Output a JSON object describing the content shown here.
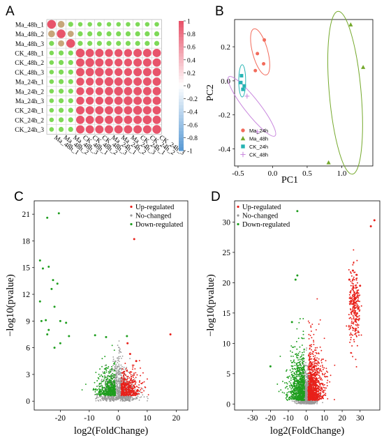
{
  "panels": {
    "a": "A",
    "b": "B",
    "c": "C",
    "d": "D"
  },
  "chart_data": [
    {
      "type": "heatmap",
      "title": "",
      "rows": [
        "Ma_48h_1",
        "Ma_48h_2",
        "Ma_48h_3",
        "CK_48h_1",
        "CK_48h_2",
        "CK_48h_3",
        "Ma_24h_1",
        "Ma_24h_2",
        "Ma_24h_3",
        "CK_24h_1",
        "CK_24h_2",
        "CK_24h_3"
      ],
      "columns": [
        "Ma_48h_1",
        "Ma_48h_2",
        "Ma_48h_3",
        "CK_48h_1",
        "CK_48h_2",
        "CK_48h_3",
        "Ma_24h_1",
        "Ma_24h_2",
        "Ma_24h_3",
        "CK_24h_1",
        "CK_24h_2",
        "CK_24h_3"
      ],
      "values": [
        [
          1.0,
          0.75,
          0.45,
          0.35,
          0.35,
          0.35,
          0.35,
          0.35,
          0.35,
          0.35,
          0.35,
          0.35
        ],
        [
          0.75,
          1.0,
          0.65,
          0.45,
          0.45,
          0.45,
          0.45,
          0.45,
          0.45,
          0.45,
          0.45,
          0.45
        ],
        [
          0.45,
          0.65,
          1.0,
          0.45,
          0.45,
          0.45,
          0.45,
          0.45,
          0.45,
          0.45,
          0.45,
          0.45
        ],
        [
          0.35,
          0.45,
          0.45,
          1.0,
          0.95,
          0.95,
          0.9,
          0.9,
          0.9,
          0.95,
          0.95,
          0.95
        ],
        [
          0.35,
          0.45,
          0.45,
          0.95,
          1.0,
          0.95,
          0.9,
          0.9,
          0.9,
          0.95,
          0.95,
          0.95
        ],
        [
          0.35,
          0.45,
          0.45,
          0.95,
          0.95,
          1.0,
          0.9,
          0.9,
          0.9,
          0.95,
          0.95,
          0.95
        ],
        [
          0.35,
          0.45,
          0.45,
          0.9,
          0.9,
          0.9,
          1.0,
          0.95,
          0.95,
          0.95,
          0.95,
          0.95
        ],
        [
          0.35,
          0.45,
          0.45,
          0.9,
          0.9,
          0.9,
          0.95,
          1.0,
          0.95,
          0.95,
          0.95,
          0.95
        ],
        [
          0.35,
          0.45,
          0.45,
          0.9,
          0.9,
          0.9,
          0.95,
          0.95,
          1.0,
          0.95,
          0.95,
          0.95
        ],
        [
          0.35,
          0.45,
          0.45,
          0.95,
          0.95,
          0.95,
          0.95,
          0.95,
          0.95,
          1.0,
          0.95,
          0.95
        ],
        [
          0.35,
          0.45,
          0.45,
          0.95,
          0.95,
          0.95,
          0.95,
          0.95,
          0.95,
          0.95,
          1.0,
          0.95
        ],
        [
          0.35,
          0.45,
          0.45,
          0.95,
          0.95,
          0.95,
          0.95,
          0.95,
          0.95,
          0.95,
          0.95,
          1.0
        ]
      ],
      "colorbar_ticks": [
        "1",
        "0.8",
        "0.6",
        "0.4",
        "0.2",
        "0",
        "-0.2",
        "-0.4",
        "-0.6",
        "-0.8",
        "-1"
      ],
      "colors": {
        "low": "#5b9bd5",
        "mid": "#ffffff",
        "green": "#7ed957",
        "tan": "#c7a67a",
        "high": "#e8546b"
      }
    },
    {
      "type": "scatter",
      "xlabel": "PC1",
      "ylabel": "PC2",
      "xlim": [
        -0.55,
        1.45
      ],
      "ylim": [
        -0.5,
        0.36
      ],
      "xticks": [
        "-0.5",
        "0.0",
        "0.5",
        "1.0"
      ],
      "yticks": [
        "0.2",
        "0.0",
        "-0.2",
        "-0.4"
      ],
      "legend": "bottom-left",
      "series": [
        {
          "name": "Ma_24h",
          "marker": "circle",
          "color": "#f26b5b",
          "points": [
            [
              -0.12,
              0.24
            ],
            [
              -0.22,
              0.16
            ],
            [
              -0.13,
              0.1
            ],
            [
              -0.25,
              0.06
            ]
          ]
        },
        {
          "name": "Ma_48h",
          "marker": "triangle",
          "color": "#74a82b",
          "points": [
            [
              1.13,
              0.33
            ],
            [
              1.31,
              0.08
            ],
            [
              0.81,
              -0.48
            ]
          ]
        },
        {
          "name": "CK_24h",
          "marker": "square",
          "color": "#25b3b3",
          "points": [
            [
              -0.45,
              0.03
            ],
            [
              -0.46,
              -0.01
            ],
            [
              -0.41,
              -0.03
            ],
            [
              -0.43,
              -0.05
            ]
          ]
        },
        {
          "name": "CK_48h",
          "marker": "plus",
          "color": "#c988de",
          "points": [
            [
              -0.37,
              -0.09
            ],
            [
              -0.22,
              -0.3
            ]
          ]
        }
      ],
      "ellipses": [
        {
          "series": "Ma_24h",
          "cx": -0.18,
          "cy": 0.17,
          "rx": 0.11,
          "ry": 0.14,
          "angle": -15
        },
        {
          "series": "Ma_48h",
          "cx": 1.05,
          "cy": -0.07,
          "rx": 0.23,
          "ry": 0.48,
          "angle": -5
        },
        {
          "series": "CK_24h",
          "cx": -0.44,
          "cy": 0.0,
          "rx": 0.05,
          "ry": 0.095,
          "angle": 0
        },
        {
          "series": "CK_48h",
          "cx": -0.3,
          "cy": -0.15,
          "rx": 0.11,
          "ry": 0.22,
          "angle": -38
        }
      ]
    },
    {
      "type": "scatter",
      "subtype": "volcano",
      "xlabel": "log2(FoldChange)",
      "ylabel": "−log10(pvalue)",
      "xlim": [
        -29,
        24
      ],
      "ylim": [
        -1,
        22.5
      ],
      "xticks": [
        "-20",
        "-10",
        "0",
        "10",
        "20"
      ],
      "yticks": [
        "0",
        "3",
        "6",
        "9",
        "12",
        "15",
        "18",
        "21"
      ],
      "legend": "top-right",
      "series": [
        {
          "name": "Up-regulated",
          "color": "#e8201a"
        },
        {
          "name": "No-changed",
          "color": "#999999"
        },
        {
          "name": "Down-regulated",
          "color": "#1e9e1e"
        }
      ],
      "notable_points": {
        "up": [
          [
            5.5,
            18.2
          ],
          [
            18,
            7.5
          ],
          [
            3.2,
            6.5
          ],
          [
            4.1,
            5.3
          ],
          [
            6.2,
            4.5
          ]
        ],
        "down": [
          [
            -20.5,
            21.1
          ],
          [
            -24.5,
            20.6
          ],
          [
            -27,
            15.8
          ],
          [
            -26,
            14.9
          ],
          [
            -24,
            15.1
          ],
          [
            -22.5,
            13.6
          ],
          [
            -23,
            12.6
          ],
          [
            -21,
            13.2
          ],
          [
            -27,
            11.2
          ],
          [
            -22,
            10.6
          ],
          [
            -25,
            9.1
          ],
          [
            -26.5,
            9.0
          ],
          [
            -24,
            8.0
          ],
          [
            -20,
            9.0
          ],
          [
            -18,
            8.8
          ],
          [
            -17,
            7.3
          ],
          [
            -20,
            6.5
          ],
          [
            -22,
            6.0
          ],
          [
            -24.5,
            7.5
          ],
          [
            -8,
            7.4
          ],
          [
            -4.2,
            7.2
          ],
          [
            3,
            7.3
          ]
        ]
      }
    },
    {
      "type": "scatter",
      "subtype": "volcano",
      "xlabel": "log2(FoldChange)",
      "ylabel": "−log10(pvalue)",
      "xlim": [
        -40,
        41
      ],
      "ylim": [
        -1,
        33.5
      ],
      "xticks": [
        "-30",
        "-20",
        "-10",
        "0",
        "10",
        "20",
        "30"
      ],
      "yticks": [
        "0",
        "5",
        "10",
        "15",
        "20",
        "25",
        "30"
      ],
      "legend": "top-left",
      "series": [
        {
          "name": "Up-regulated",
          "color": "#e8201a"
        },
        {
          "name": "No-changed",
          "color": "#999999"
        },
        {
          "name": "Down-regulated",
          "color": "#1e9e1e"
        }
      ],
      "notable_points": {
        "up": [
          [
            38,
            30.3
          ],
          [
            36,
            29.3
          ],
          [
            26,
            22.0
          ],
          [
            28,
            21.3
          ],
          [
            24,
            20.5
          ],
          [
            30,
            19.5
          ],
          [
            27,
            18.0
          ],
          [
            25,
            17.0
          ]
        ],
        "down": [
          [
            -5,
            31.8
          ],
          [
            -5,
            21.2
          ],
          [
            -6,
            20.5
          ],
          [
            -20,
            6.2
          ],
          [
            -8,
            13.5
          ]
        ]
      }
    }
  ]
}
